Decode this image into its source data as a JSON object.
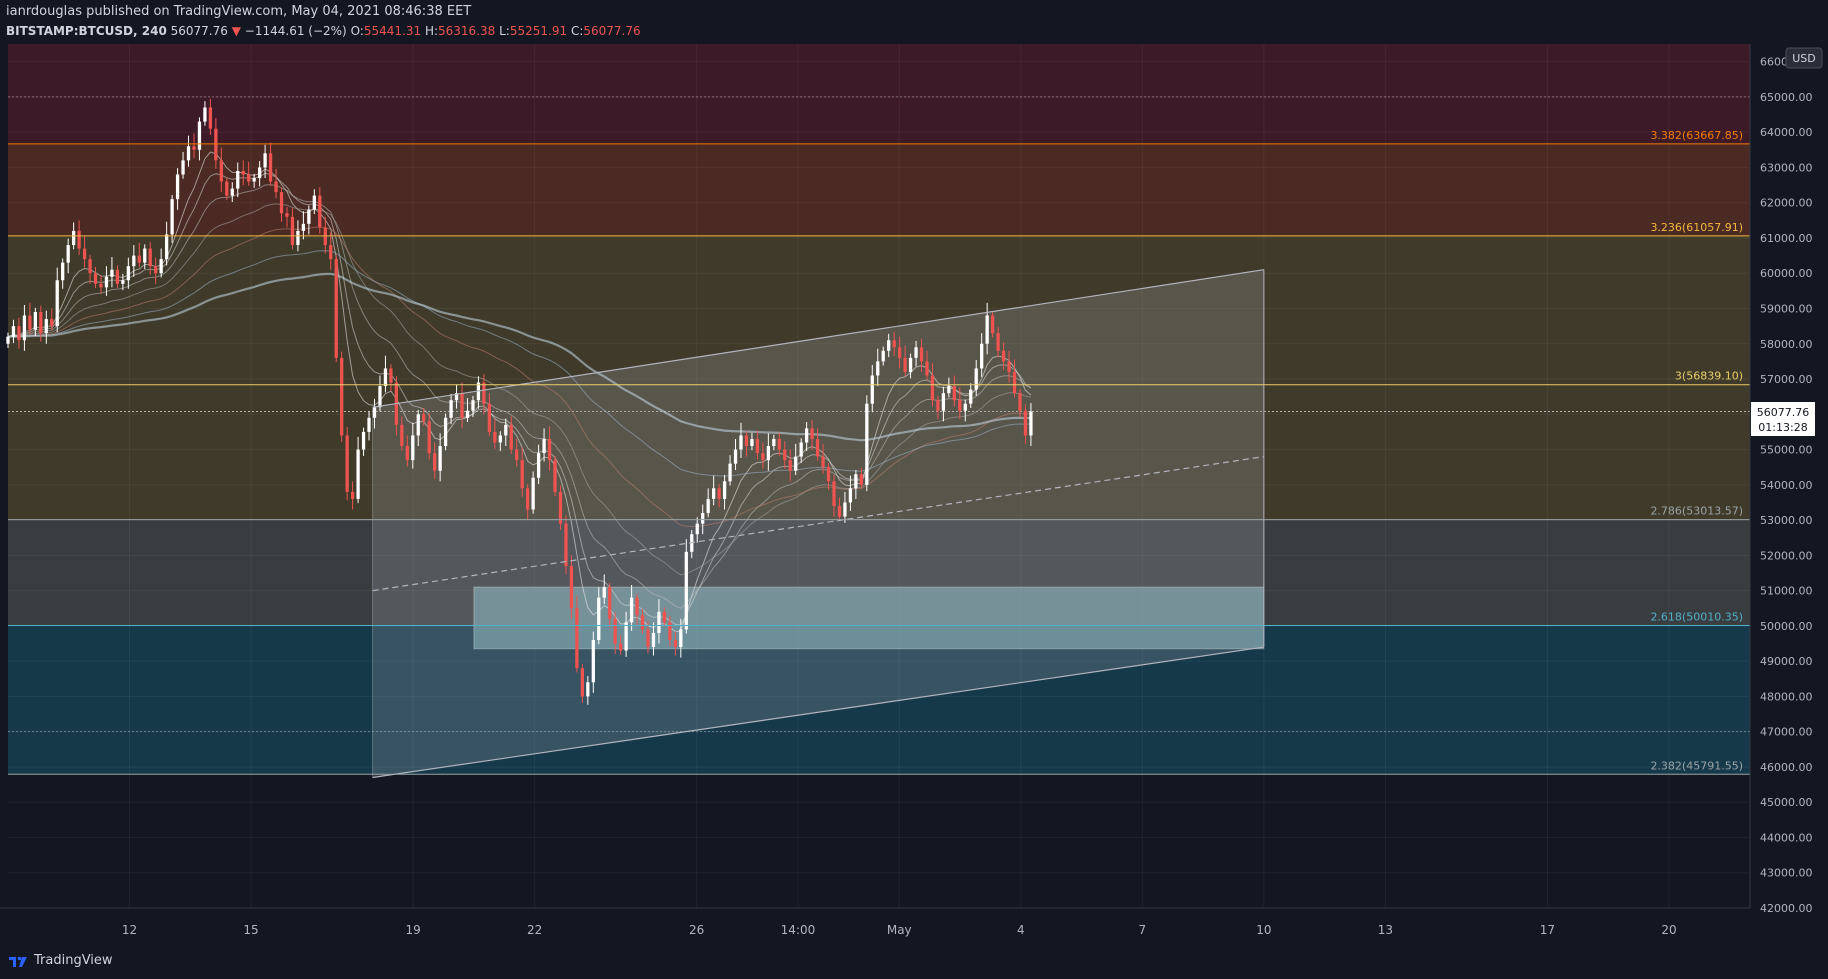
{
  "header": {
    "publisher": "ianrdouglas published on TradingView.com, May 04, 2021 08:46:38 EET",
    "symbol": "BITSTAMP:BTCUSD, 240",
    "last": "56077.76",
    "change": "−1144.61 (−2%)",
    "o_label": "O:",
    "o_value": "55441.31",
    "h_label": "H:",
    "h_value": "56316.38",
    "l_label": "L:",
    "l_value": "55251.91",
    "c_label": "C:",
    "c_value": "56077.76"
  },
  "currency": "USD",
  "price_tag": {
    "price": "56077.76",
    "countdown": "01:13:28"
  },
  "footer": {
    "brand": "TradingView"
  },
  "colors": {
    "background": "#131722",
    "up": "#ffffff",
    "down": "#ef5350",
    "fib_red": "#3d1a28",
    "fib_orange": "#4a2a22",
    "fib_olive": "#3f3a2a",
    "fib_grey": "#3a3d40",
    "fib_teal": "#16394a",
    "rect": "#8fb7c0",
    "channel": "#b2b5be"
  },
  "chart_data": {
    "type": "candlestick",
    "title": "",
    "ylim": [
      42000,
      66500
    ],
    "y_ticks": [
      42000,
      43000,
      44000,
      45000,
      46000,
      47000,
      48000,
      49000,
      50000,
      51000,
      52000,
      53000,
      54000,
      55000,
      56000,
      57000,
      58000,
      59000,
      60000,
      61000,
      62000,
      63000,
      64000,
      65000,
      66000
    ],
    "x_tick_labels": [
      {
        "label": "12",
        "day": 12
      },
      {
        "label": "15",
        "day": 15
      },
      {
        "label": "19",
        "day": 19
      },
      {
        "label": "22",
        "day": 22
      },
      {
        "label": "26",
        "day": 26
      },
      {
        "label": "14:00",
        "day": 28.5
      },
      {
        "label": "May",
        "day": 31
      },
      {
        "label": "4",
        "day": 34
      },
      {
        "label": "7",
        "day": 37
      },
      {
        "label": "10",
        "day": 40
      },
      {
        "label": "13",
        "day": 43
      },
      {
        "label": "17",
        "day": 47
      },
      {
        "label": "20",
        "day": 50
      }
    ],
    "fib_levels": [
      {
        "label": "3.382(63667.85)",
        "value": 63667.85,
        "color": "#f57c00"
      },
      {
        "label": "3.236(61057.91)",
        "value": 61057.91,
        "color": "#f5b940"
      },
      {
        "label": "3(56839.10)",
        "value": 56839.1,
        "color": "#e8d06a"
      },
      {
        "label": "2.786(53013.57)",
        "value": 53013.57,
        "color": "#9aa4a6"
      },
      {
        "label": "2.618(50010.35)",
        "value": 50010.35,
        "color": "#4fb0c6"
      },
      {
        "label": "2.382(45791.55)",
        "value": 45791.55,
        "color": "#9aa4a6"
      }
    ],
    "close_series": [
      58200,
      58500,
      58100,
      58800,
      58400,
      58900,
      58300,
      58700,
      58500,
      59800,
      60300,
      60800,
      61200,
      60700,
      60400,
      60000,
      59700,
      59600,
      59900,
      60100,
      59700,
      59800,
      60200,
      60500,
      60300,
      60700,
      60200,
      60000,
      60400,
      61100,
      62100,
      62800,
      63200,
      63600,
      63500,
      64300,
      64700,
      64100,
      63200,
      62600,
      62200,
      62400,
      62900,
      62800,
      62600,
      62700,
      63000,
      63400,
      62600,
      62300,
      61700,
      61600,
      60800,
      61200,
      61400,
      61800,
      62200,
      61300,
      60800,
      60400,
      57600,
      55400,
      53800,
      53600,
      55000,
      55500,
      55900,
      56200,
      56800,
      57300,
      56900,
      55700,
      55100,
      54700,
      55400,
      56000,
      55800,
      54900,
      54400,
      55100,
      55900,
      56400,
      56600,
      55900,
      56100,
      56400,
      56900,
      56300,
      55500,
      55200,
      55400,
      55700,
      55000,
      54700,
      53900,
      53300,
      54200,
      54900,
      55300,
      54700,
      53800,
      52900,
      51700,
      50500,
      48800,
      48000,
      48400,
      49600,
      50800,
      51100,
      50200,
      49500,
      49300,
      50100,
      50800,
      50300,
      49900,
      49400,
      49800,
      50400,
      50100,
      49600,
      49400,
      49900,
      52100,
      52600,
      52900,
      53200,
      53600,
      53900,
      53600,
      54100,
      54600,
      55000,
      55400,
      55100,
      55300,
      54900,
      54700,
      55100,
      55300,
      55000,
      54700,
      54400,
      54800,
      55200,
      55600,
      55300,
      54800,
      54500,
      54100,
      53400,
      53100,
      53500,
      53900,
      54300,
      54000,
      56300,
      57100,
      57500,
      57800,
      58100,
      57900,
      57600,
      57200,
      57600,
      57900,
      57500,
      57100,
      56400,
      56100,
      56600,
      56800,
      56400,
      56100,
      56300,
      56700,
      57300,
      58000,
      58800,
      58300,
      57800,
      57500,
      57200,
      56600,
      56100,
      55400,
      56078
    ],
    "ribbon_lengths": [
      8,
      13,
      21,
      34,
      55,
      89,
      144
    ],
    "trendline_upper": {
      "from": [
        18.0,
        56200
      ],
      "to": [
        40.0,
        60100
      ]
    },
    "trendline_lower": {
      "from": [
        18.0,
        45700
      ],
      "to": [
        40.0,
        49400
      ]
    },
    "trendline_mid": {
      "from": [
        18.0,
        51000
      ],
      "to": [
        40.0,
        54800
      ]
    },
    "zone": {
      "from_day": 20.5,
      "to_day": 40.0,
      "low": 49350,
      "high": 51100
    },
    "last_price": 56077.76
  }
}
